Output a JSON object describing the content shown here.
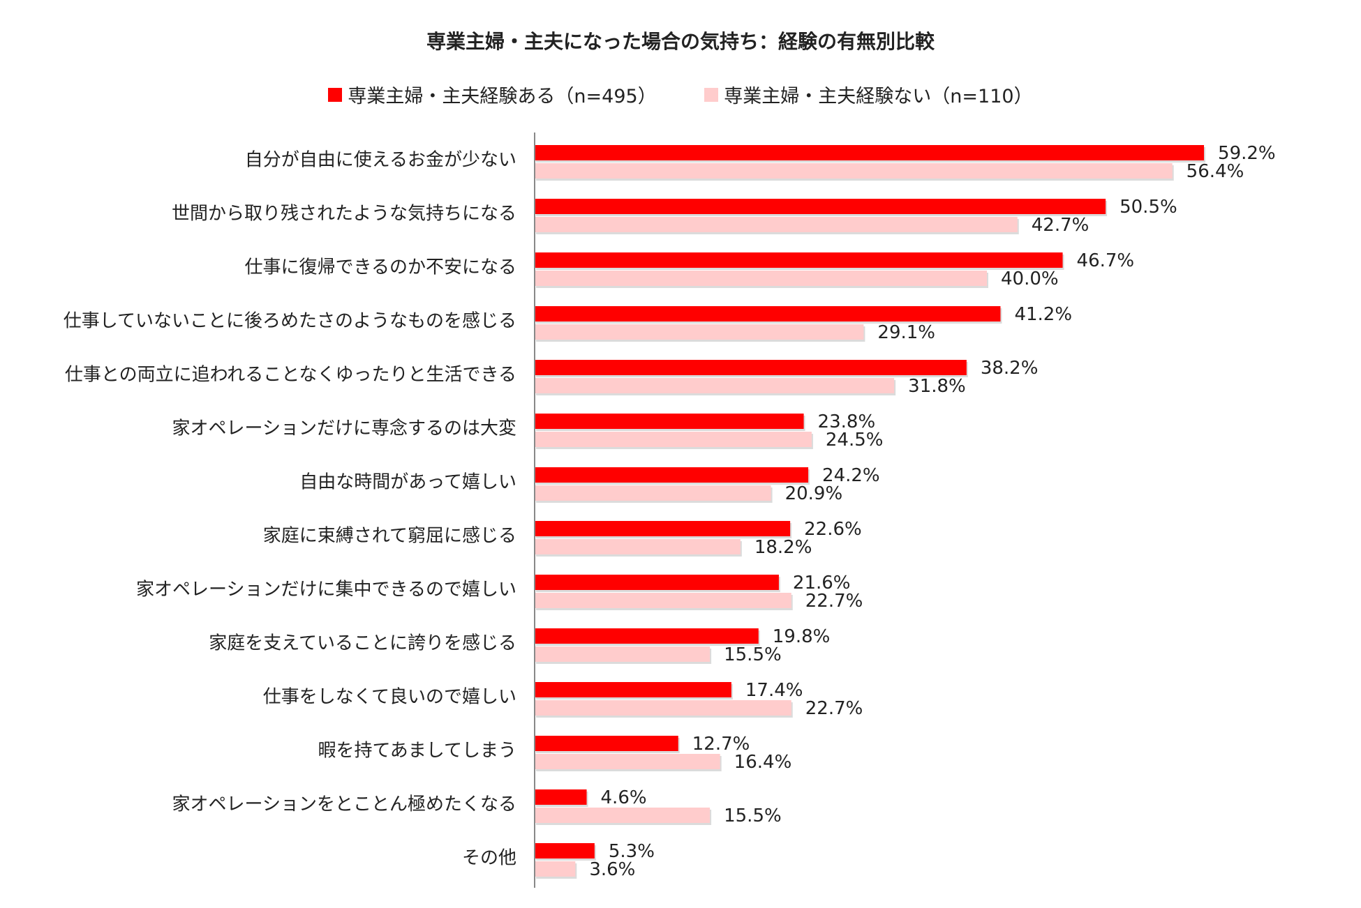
{
  "chart_data": {
    "type": "bar",
    "orientation": "horizontal",
    "title": "専業主婦・主夫になった場合の気持ち：経験の有無別比較",
    "legend_position": "top",
    "grid": false,
    "xlim": [
      0,
      70
    ],
    "categories": [
      "自分が自由に使えるお金が少ない",
      "世間から取り残されたような気持ちになる",
      "仕事に復帰できるのか不安になる",
      "仕事していないことに後ろめたさのようなものを感じる",
      "仕事との両立に追われることなくゆったりと生活できる",
      "家オペレーションだけに専念するのは大変",
      "自由な時間があって嬉しい",
      "家庭に束縛されて窮屈に感じる",
      "家オペレーションだけに集中できるので嬉しい",
      "家庭を支えていることに誇りを感じる",
      "仕事をしなくて良いので嬉しい",
      "暇を持てあましてしまう",
      "家オペレーションをとことん極めたくなる",
      "その他"
    ],
    "series": [
      {
        "name": "専業主婦・主夫経験ある（n=495）",
        "color": "#ff0000",
        "values": [
          59.2,
          50.5,
          46.7,
          41.2,
          38.2,
          23.8,
          24.2,
          22.6,
          21.6,
          19.8,
          17.4,
          12.7,
          4.6,
          5.3
        ],
        "labels": [
          "59.2%",
          "50.5%",
          "46.7%",
          "41.2%",
          "38.2%",
          "23.8%",
          "24.2%",
          "22.6%",
          "21.6%",
          "19.8%",
          "17.4%",
          "12.7%",
          "4.6%",
          "5.3%"
        ]
      },
      {
        "name": "専業主婦・主夫経験ない（n=110）",
        "color": "#ffcccc",
        "values": [
          56.4,
          42.7,
          40.0,
          29.1,
          31.8,
          24.5,
          20.9,
          18.2,
          22.7,
          15.5,
          22.7,
          16.4,
          15.5,
          3.6
        ],
        "labels": [
          "56.4%",
          "42.7%",
          "40.0%",
          "29.1%",
          "31.8%",
          "24.5%",
          "20.9%",
          "18.2%",
          "22.7%",
          "15.5%",
          "22.7%",
          "16.4%",
          "15.5%",
          "3.6%"
        ]
      }
    ]
  }
}
